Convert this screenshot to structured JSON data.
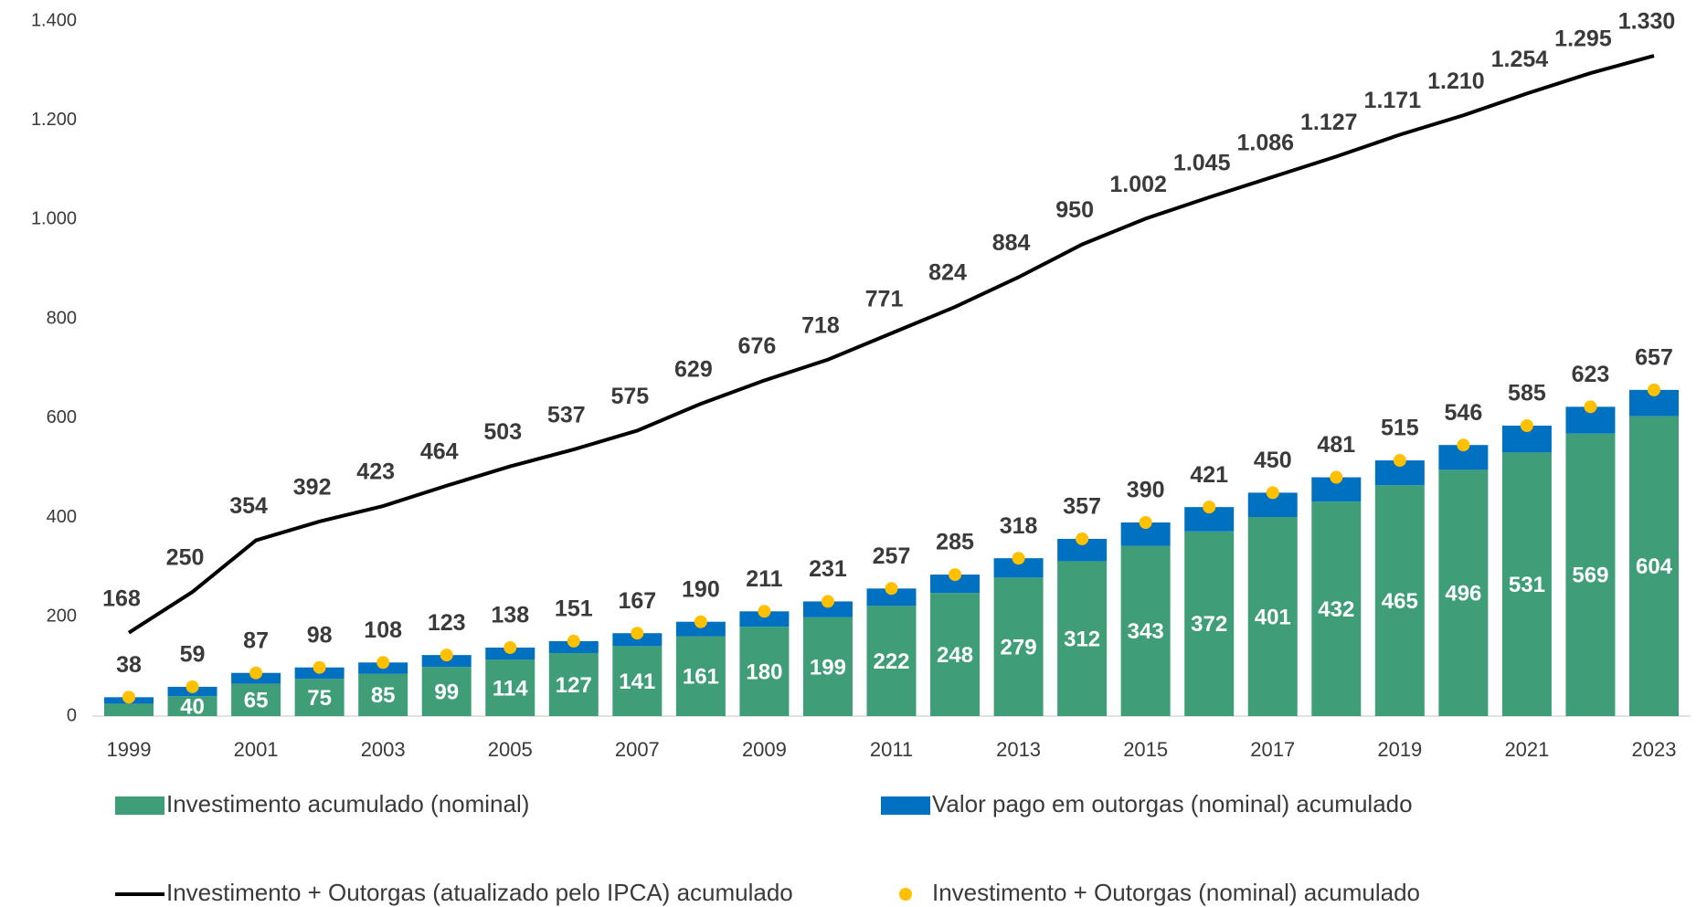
{
  "chart_data": {
    "type": "bar",
    "categories": [
      "1999",
      null,
      "2001",
      null,
      "2003",
      null,
      "2005",
      null,
      "2007",
      null,
      "2009",
      null,
      "2011",
      null,
      "2013",
      null,
      "2015",
      null,
      "2017",
      null,
      "2019",
      null,
      "2021",
      null,
      "2023"
    ],
    "ylim": [
      0,
      1400
    ],
    "yticks": [
      0,
      200,
      400,
      600,
      800,
      {
        "value": 1000,
        "label": "1.000"
      },
      {
        "value": 1200,
        "label": "1.200"
      },
      {
        "value": 1400,
        "label": "1.400"
      }
    ],
    "grid": false,
    "stacked": true,
    "legend": "bottom",
    "series": [
      {
        "name": "Investimento acumulado (nominal)",
        "type": "bar",
        "color": "#3f9e78",
        "values": [
          25,
          40,
          65,
          75,
          85,
          99,
          114,
          127,
          141,
          161,
          180,
          199,
          222,
          248,
          279,
          312,
          343,
          372,
          401,
          432,
          465,
          496,
          531,
          569,
          604
        ],
        "value_labels": [
          null,
          "40",
          "65",
          "75",
          "85",
          "99",
          "114",
          "127",
          "141",
          "161",
          "180",
          "199",
          "222",
          "248",
          "279",
          "312",
          "343",
          "372",
          "401",
          "432",
          "465",
          "496",
          "531",
          "569",
          "604"
        ]
      },
      {
        "name": "Valor pago em outorgas (nominal) acumulado",
        "type": "bar",
        "color": "#0070c0",
        "values": [
          13,
          19,
          22,
          23,
          23,
          24,
          24,
          24,
          26,
          29,
          31,
          32,
          35,
          37,
          39,
          45,
          47,
          49,
          49,
          49,
          50,
          50,
          54,
          54,
          53
        ]
      },
      {
        "name": "Investimento + Outorgas (atualizado pelo IPCA) acumulado",
        "type": "line",
        "color": "#000000",
        "values": [
          168,
          250,
          354,
          392,
          423,
          464,
          503,
          537,
          575,
          629,
          676,
          718,
          771,
          824,
          884,
          950,
          1002,
          1045,
          1086,
          1127,
          1171,
          1210,
          1254,
          1295,
          1330
        ],
        "value_labels": [
          "168",
          "250",
          "354",
          "392",
          "423",
          "464",
          "503",
          "537",
          "575",
          "629",
          "676",
          "718",
          "771",
          "824",
          "884",
          "950",
          "1.002",
          "1.045",
          "1.086",
          "1.127",
          "1.171",
          "1.210",
          "1.254",
          "1.295",
          "1.330"
        ]
      },
      {
        "name": "Investimento + Outorgas (nominal) acumulado",
        "type": "scatter",
        "color": "#ffc000",
        "values": [
          38,
          59,
          87,
          98,
          108,
          123,
          138,
          151,
          167,
          190,
          211,
          231,
          257,
          285,
          318,
          357,
          390,
          421,
          450,
          481,
          515,
          546,
          585,
          623,
          657
        ]
      }
    ]
  }
}
